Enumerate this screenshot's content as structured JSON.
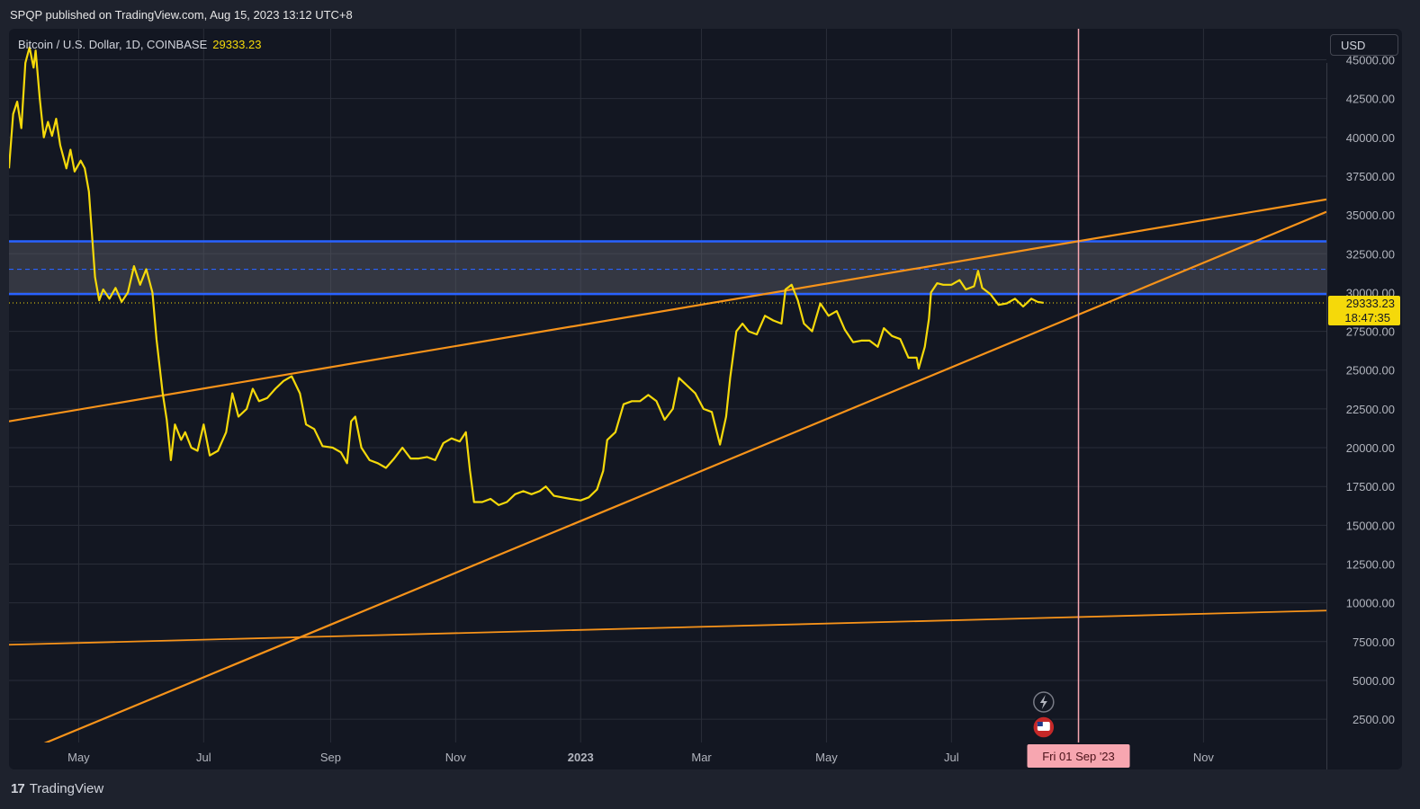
{
  "publisher": "SPQP published on TradingView.com, Aug 15, 2023 13:12 UTC+8",
  "symbol": {
    "label": "Bitcoin / U.S. Dollar, 1D, COINBASE",
    "price": "29333.23"
  },
  "currency": "USD",
  "footer": {
    "logo_mark": "17",
    "logo_text": "TradingView"
  },
  "colors": {
    "background": "#131722",
    "price_line": "#f5d90a",
    "trendline": "#f7931a",
    "zone_border": "#2962ff",
    "cursor_line": "#f7a6b0"
  },
  "chart_data": {
    "type": "line",
    "series": [
      {
        "values": [
          [
            "2022-03-28",
            38000
          ],
          [
            "2022-03-30",
            41500
          ],
          [
            "2022-04-01",
            42300
          ],
          [
            "2022-04-03",
            40600
          ],
          [
            "2022-04-05",
            44800
          ],
          [
            "2022-04-07",
            45800
          ],
          [
            "2022-04-09",
            44500
          ],
          [
            "2022-04-10",
            45600
          ],
          [
            "2022-04-12",
            42500
          ],
          [
            "2022-04-14",
            40000
          ],
          [
            "2022-04-16",
            41000
          ],
          [
            "2022-04-18",
            40100
          ],
          [
            "2022-04-20",
            41200
          ],
          [
            "2022-04-22",
            39500
          ],
          [
            "2022-04-25",
            38000
          ],
          [
            "2022-04-27",
            39200
          ],
          [
            "2022-04-29",
            37800
          ],
          [
            "2022-05-02",
            38500
          ],
          [
            "2022-05-04",
            38000
          ],
          [
            "2022-05-06",
            36500
          ],
          [
            "2022-05-09",
            31000
          ],
          [
            "2022-05-11",
            29500
          ],
          [
            "2022-05-13",
            30200
          ],
          [
            "2022-05-16",
            29600
          ],
          [
            "2022-05-19",
            30300
          ],
          [
            "2022-05-22",
            29400
          ],
          [
            "2022-05-25",
            30000
          ],
          [
            "2022-05-28",
            31700
          ],
          [
            "2022-05-31",
            30500
          ],
          [
            "2022-06-03",
            31500
          ],
          [
            "2022-06-06",
            30000
          ],
          [
            "2022-06-08",
            27000
          ],
          [
            "2022-06-11",
            23500
          ],
          [
            "2022-06-13",
            21800
          ],
          [
            "2022-06-15",
            19200
          ],
          [
            "2022-06-17",
            21500
          ],
          [
            "2022-06-20",
            20500
          ],
          [
            "2022-06-22",
            21000
          ],
          [
            "2022-06-25",
            20000
          ],
          [
            "2022-06-28",
            19800
          ],
          [
            "2022-07-01",
            21500
          ],
          [
            "2022-07-04",
            19500
          ],
          [
            "2022-07-08",
            19800
          ],
          [
            "2022-07-12",
            21000
          ],
          [
            "2022-07-15",
            23500
          ],
          [
            "2022-07-18",
            22000
          ],
          [
            "2022-07-22",
            22500
          ],
          [
            "2022-07-25",
            23800
          ],
          [
            "2022-07-28",
            23000
          ],
          [
            "2022-08-01",
            23200
          ],
          [
            "2022-08-05",
            23800
          ],
          [
            "2022-08-09",
            24300
          ],
          [
            "2022-08-13",
            24600
          ],
          [
            "2022-08-17",
            23500
          ],
          [
            "2022-08-20",
            21500
          ],
          [
            "2022-08-24",
            21200
          ],
          [
            "2022-08-28",
            20100
          ],
          [
            "2022-09-02",
            20000
          ],
          [
            "2022-09-06",
            19700
          ],
          [
            "2022-09-09",
            19000
          ],
          [
            "2022-09-11",
            21700
          ],
          [
            "2022-09-13",
            22000
          ],
          [
            "2022-09-16",
            20000
          ],
          [
            "2022-09-20",
            19200
          ],
          [
            "2022-09-24",
            19000
          ],
          [
            "2022-09-28",
            18700
          ],
          [
            "2022-10-02",
            19300
          ],
          [
            "2022-10-06",
            20000
          ],
          [
            "2022-10-10",
            19300
          ],
          [
            "2022-10-14",
            19300
          ],
          [
            "2022-10-18",
            19400
          ],
          [
            "2022-10-22",
            19200
          ],
          [
            "2022-10-26",
            20300
          ],
          [
            "2022-10-30",
            20600
          ],
          [
            "2022-11-03",
            20400
          ],
          [
            "2022-11-06",
            21000
          ],
          [
            "2022-11-08",
            18500
          ],
          [
            "2022-11-10",
            16500
          ],
          [
            "2022-11-14",
            16500
          ],
          [
            "2022-11-18",
            16700
          ],
          [
            "2022-11-22",
            16300
          ],
          [
            "2022-11-26",
            16500
          ],
          [
            "2022-11-30",
            17000
          ],
          [
            "2022-12-04",
            17200
          ],
          [
            "2022-12-08",
            17000
          ],
          [
            "2022-12-12",
            17200
          ],
          [
            "2022-12-15",
            17500
          ],
          [
            "2022-12-19",
            16900
          ],
          [
            "2022-12-23",
            16800
          ],
          [
            "2022-12-27",
            16700
          ],
          [
            "2023-01-01",
            16600
          ],
          [
            "2023-01-05",
            16800
          ],
          [
            "2023-01-09",
            17300
          ],
          [
            "2023-01-12",
            18500
          ],
          [
            "2023-01-14",
            20500
          ],
          [
            "2023-01-18",
            21000
          ],
          [
            "2023-01-22",
            22800
          ],
          [
            "2023-01-26",
            23000
          ],
          [
            "2023-01-30",
            23000
          ],
          [
            "2023-02-03",
            23400
          ],
          [
            "2023-02-07",
            23000
          ],
          [
            "2023-02-11",
            21800
          ],
          [
            "2023-02-15",
            22500
          ],
          [
            "2023-02-18",
            24500
          ],
          [
            "2023-02-22",
            24000
          ],
          [
            "2023-02-26",
            23500
          ],
          [
            "2023-03-02",
            22500
          ],
          [
            "2023-03-06",
            22300
          ],
          [
            "2023-03-10",
            20200
          ],
          [
            "2023-03-13",
            22000
          ],
          [
            "2023-03-15",
            24500
          ],
          [
            "2023-03-18",
            27500
          ],
          [
            "2023-03-21",
            28000
          ],
          [
            "2023-03-24",
            27500
          ],
          [
            "2023-03-28",
            27300
          ],
          [
            "2023-04-01",
            28500
          ],
          [
            "2023-04-05",
            28200
          ],
          [
            "2023-04-09",
            28000
          ],
          [
            "2023-04-11",
            30200
          ],
          [
            "2023-04-14",
            30500
          ],
          [
            "2023-04-17",
            29500
          ],
          [
            "2023-04-20",
            28000
          ],
          [
            "2023-04-24",
            27500
          ],
          [
            "2023-04-28",
            29300
          ],
          [
            "2023-05-02",
            28500
          ],
          [
            "2023-05-06",
            28800
          ],
          [
            "2023-05-10",
            27600
          ],
          [
            "2023-05-14",
            26800
          ],
          [
            "2023-05-18",
            26900
          ],
          [
            "2023-05-22",
            26900
          ],
          [
            "2023-05-26",
            26500
          ],
          [
            "2023-05-29",
            27700
          ],
          [
            "2023-06-02",
            27200
          ],
          [
            "2023-06-06",
            27000
          ],
          [
            "2023-06-10",
            25800
          ],
          [
            "2023-06-14",
            25800
          ],
          [
            "2023-06-15",
            25100
          ],
          [
            "2023-06-18",
            26500
          ],
          [
            "2023-06-20",
            28300
          ],
          [
            "2023-06-21",
            30000
          ],
          [
            "2023-06-24",
            30600
          ],
          [
            "2023-06-27",
            30500
          ],
          [
            "2023-07-01",
            30500
          ],
          [
            "2023-07-05",
            30800
          ],
          [
            "2023-07-08",
            30200
          ],
          [
            "2023-07-12",
            30400
          ],
          [
            "2023-07-14",
            31400
          ],
          [
            "2023-07-16",
            30300
          ],
          [
            "2023-07-20",
            29900
          ],
          [
            "2023-07-24",
            29200
          ],
          [
            "2023-07-28",
            29300
          ],
          [
            "2023-08-01",
            29600
          ],
          [
            "2023-08-05",
            29100
          ],
          [
            "2023-08-09",
            29600
          ],
          [
            "2023-08-12",
            29400
          ],
          [
            "2023-08-15",
            29333
          ]
        ]
      }
    ],
    "current_price": 29333.23,
    "countdown": "18:47:35",
    "x_tick_labels": [
      {
        "date": "2022-05-01",
        "label": "May"
      },
      {
        "date": "2022-07-01",
        "label": "Jul"
      },
      {
        "date": "2022-09-01",
        "label": "Sep"
      },
      {
        "date": "2022-11-01",
        "label": "Nov"
      },
      {
        "date": "2023-01-01",
        "label": "2023"
      },
      {
        "date": "2023-03-01",
        "label": "Mar"
      },
      {
        "date": "2023-05-01",
        "label": "May"
      },
      {
        "date": "2023-07-01",
        "label": "Jul"
      },
      {
        "date": "2023-11-01",
        "label": "Nov"
      }
    ],
    "y_ticks": [
      2500,
      5000,
      7500,
      10000,
      12500,
      15000,
      17500,
      20000,
      22500,
      25000,
      27500,
      30000,
      32500,
      35000,
      37500,
      40000,
      42500,
      45000
    ],
    "y_tick_labels": [
      "2500.00",
      "5000.00",
      "7500.00",
      "10000.00",
      "12500.00",
      "15000.00",
      "17500.00",
      "20000.00",
      "22500.00",
      "25000.00",
      "27500.00",
      "30000.00",
      "32500.00",
      "35000.00",
      "37500.00",
      "40000.00",
      "42500.00",
      "45000.00"
    ],
    "xlim": [
      "2022-03-28",
      "2023-12-31"
    ],
    "ylim": [
      1000,
      47000
    ],
    "grid": true,
    "resistance_zone": {
      "upper": 33300,
      "middle": 31500,
      "lower": 29900
    },
    "trendlines": [
      {
        "name": "upper",
        "from": [
          "2022-03-28",
          21700
        ],
        "to": [
          "2023-12-31",
          36000
        ]
      },
      {
        "name": "lower",
        "from": [
          "2022-03-28",
          0
        ],
        "to": [
          "2023-12-31",
          35200
        ]
      },
      {
        "name": "bottom",
        "from": [
          "2022-03-28",
          7300
        ],
        "to": [
          "2023-12-31",
          9500
        ]
      }
    ],
    "cursor": {
      "date": "2023-09-01",
      "label": "Fri 01 Sep '23"
    }
  }
}
